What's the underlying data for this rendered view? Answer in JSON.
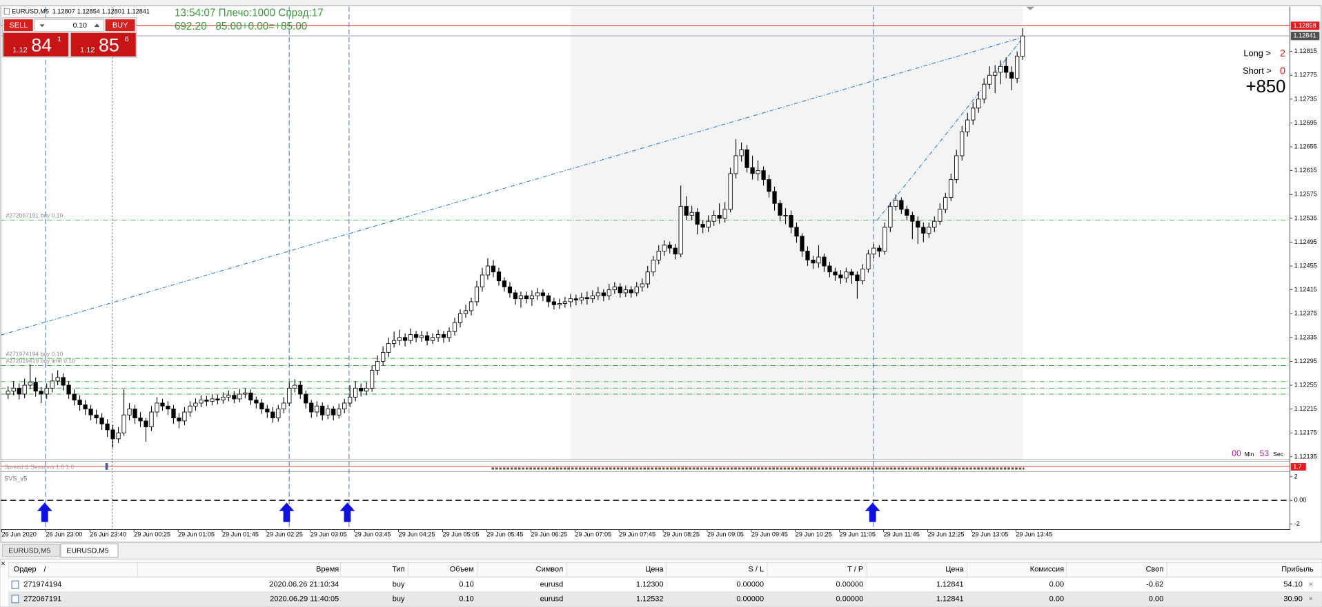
{
  "header": {
    "symbol": "EURUSD,M5",
    "ohlc": [
      1.12807,
      1.12854,
      1.12801,
      1.12841
    ]
  },
  "trade_panel": {
    "sell": "SELL",
    "buy": "BUY",
    "lot": "0.10",
    "sell_price": {
      "big": "1.12",
      "pips": "84",
      "frac": "1"
    },
    "buy_price": {
      "big": "1.12",
      "pips": "85",
      "frac": "8"
    }
  },
  "info": {
    "line1": "13:54:07 Плечо:1000 Спрэд:17",
    "line2": "692.20   85.00+0.00=+85.00"
  },
  "stats": {
    "long_label": "Long >",
    "long": "2",
    "short_label": "Short >",
    "short": "0",
    "total": "+850"
  },
  "timer": {
    "min": "00",
    "min_label": "Min",
    "sec": "53",
    "sec_label": "Sec"
  },
  "chart": {
    "type": "candlestick",
    "ylim": [
      1.1213,
      1.1289
    ],
    "yticks": [
      1.12815,
      1.12775,
      1.12735,
      1.12695,
      1.12655,
      1.12615,
      1.12575,
      1.12535,
      1.12495,
      1.12455,
      1.12415,
      1.12375,
      1.12335,
      1.12295,
      1.12255,
      1.12215,
      1.12175,
      1.12135
    ],
    "ask": 1.12858,
    "bid": 1.12841,
    "xticks": [
      "26 Jun 2020",
      "26 Jun 23:00",
      "26 Jun 23:40",
      "29 Jun 00:25",
      "29 Jun 01:05",
      "29 Jun 01:45",
      "29 Jun 02:25",
      "29 Jun 03:05",
      "29 Jun 03:45",
      "29 Jun 04:25",
      "29 Jun 05:05",
      "29 Jun 05:45",
      "29 Jun 06:25",
      "29 Jun 07:05",
      "29 Jun 07:45",
      "29 Jun 08:25",
      "29 Jun 09:05",
      "29 Jun 09:45",
      "29 Jun 10:25",
      "29 Jun 11:05",
      "29 Jun 11:45",
      "29 Jun 12:25",
      "29 Jun 13:05",
      "29 Jun 13:45"
    ],
    "order_lines": [
      {
        "price": 1.12532,
        "label": "#272067191 buy 0.10"
      },
      {
        "price": 1.123,
        "label": "#271974194 buy 0.10"
      },
      {
        "price": 1.12288,
        "label": "#272019419 buy limit 0.10"
      },
      {
        "price": 1.12261
      },
      {
        "price": 1.1225
      },
      {
        "price": 1.1224
      }
    ],
    "candles": [
      [
        1.1224,
        1.12253,
        1.12232,
        1.12245
      ],
      [
        1.12245,
        1.12262,
        1.12238,
        1.1225
      ],
      [
        1.1225,
        1.12258,
        1.12231,
        1.1224
      ],
      [
        1.1224,
        1.12266,
        1.12233,
        1.12255
      ],
      [
        1.12255,
        1.1229,
        1.12248,
        1.1226
      ],
      [
        1.1226,
        1.12268,
        1.12236,
        1.12245
      ],
      [
        1.12245,
        1.12252,
        1.12225,
        1.1224
      ],
      [
        1.1224,
        1.12258,
        1.12232,
        1.1225
      ],
      [
        1.1225,
        1.12275,
        1.12243,
        1.12262
      ],
      [
        1.12262,
        1.1228,
        1.12255,
        1.12268
      ],
      [
        1.12268,
        1.12275,
        1.12246,
        1.12255
      ],
      [
        1.12255,
        1.12262,
        1.12232,
        1.1224
      ],
      [
        1.1224,
        1.12248,
        1.12221,
        1.1223
      ],
      [
        1.1223,
        1.12238,
        1.12212,
        1.12222
      ],
      [
        1.12222,
        1.1223,
        1.12205,
        1.12215
      ],
      [
        1.12215,
        1.12222,
        1.12196,
        1.12205
      ],
      [
        1.12205,
        1.12214,
        1.1219,
        1.122
      ],
      [
        1.122,
        1.12208,
        1.1218,
        1.1219
      ],
      [
        1.1219,
        1.12198,
        1.12168,
        1.1218
      ],
      [
        1.1218,
        1.12188,
        1.1215,
        1.12165
      ],
      [
        1.12165,
        1.12185,
        1.12158,
        1.12175
      ],
      [
        1.12175,
        1.12248,
        1.1217,
        1.12205
      ],
      [
        1.12205,
        1.12225,
        1.12196,
        1.12215
      ],
      [
        1.12215,
        1.12222,
        1.1219,
        1.122
      ],
      [
        1.122,
        1.1221,
        1.12185,
        1.12195
      ],
      [
        1.12195,
        1.122,
        1.1216,
        1.12185
      ],
      [
        1.12185,
        1.1222,
        1.12178,
        1.1221
      ],
      [
        1.1221,
        1.12235,
        1.12202,
        1.12225
      ],
      [
        1.12225,
        1.12232,
        1.12212,
        1.1222
      ],
      [
        1.1222,
        1.12228,
        1.12205,
        1.12215
      ],
      [
        1.12215,
        1.12222,
        1.1219,
        1.122
      ],
      [
        1.122,
        1.12208,
        1.12183,
        1.12195
      ],
      [
        1.12195,
        1.12218,
        1.12188,
        1.1221
      ],
      [
        1.1221,
        1.12228,
        1.12202,
        1.1222
      ],
      [
        1.1222,
        1.12233,
        1.12212,
        1.12225
      ],
      [
        1.12225,
        1.12238,
        1.12218,
        1.1223
      ],
      [
        1.1223,
        1.12237,
        1.1222,
        1.12228
      ],
      [
        1.12228,
        1.1224,
        1.12221,
        1.12232
      ],
      [
        1.12232,
        1.12239,
        1.12223,
        1.1223
      ],
      [
        1.1223,
        1.12243,
        1.12224,
        1.12235
      ],
      [
        1.12235,
        1.12246,
        1.12228,
        1.12238
      ],
      [
        1.12238,
        1.12245,
        1.12225,
        1.12232
      ],
      [
        1.12232,
        1.12248,
        1.12226,
        1.1224
      ],
      [
        1.1224,
        1.1225,
        1.12233,
        1.12242
      ],
      [
        1.12242,
        1.12248,
        1.12222,
        1.1223
      ],
      [
        1.1223,
        1.12236,
        1.12216,
        1.12225
      ],
      [
        1.12225,
        1.12232,
        1.12207,
        1.12215
      ],
      [
        1.12215,
        1.12222,
        1.122,
        1.1221
      ],
      [
        1.1221,
        1.12218,
        1.12192,
        1.122
      ],
      [
        1.122,
        1.12222,
        1.12194,
        1.12215
      ],
      [
        1.12215,
        1.12235,
        1.12208,
        1.12225
      ],
      [
        1.12225,
        1.1226,
        1.1222,
        1.1225
      ],
      [
        1.1225,
        1.12265,
        1.12243,
        1.12255
      ],
      [
        1.12255,
        1.12262,
        1.12232,
        1.1224
      ],
      [
        1.1224,
        1.12246,
        1.12216,
        1.12225
      ],
      [
        1.12225,
        1.1223,
        1.122,
        1.1221
      ],
      [
        1.1221,
        1.12228,
        1.12202,
        1.1222
      ],
      [
        1.1222,
        1.12226,
        1.12196,
        1.12205
      ],
      [
        1.12205,
        1.12222,
        1.12198,
        1.12215
      ],
      [
        1.12215,
        1.1222,
        1.12196,
        1.12205
      ],
      [
        1.12205,
        1.12224,
        1.12199,
        1.12215
      ],
      [
        1.12215,
        1.12232,
        1.12208,
        1.12225
      ],
      [
        1.12225,
        1.12255,
        1.12218,
        1.12235
      ],
      [
        1.12235,
        1.12262,
        1.12228,
        1.1225
      ],
      [
        1.1225,
        1.12258,
        1.12236,
        1.12245
      ],
      [
        1.12245,
        1.1226,
        1.12238,
        1.1225
      ],
      [
        1.1225,
        1.12288,
        1.12244,
        1.1228
      ],
      [
        1.1228,
        1.12305,
        1.12272,
        1.12295
      ],
      [
        1.12295,
        1.1232,
        1.12288,
        1.1231
      ],
      [
        1.1231,
        1.12335,
        1.12302,
        1.12325
      ],
      [
        1.12325,
        1.12345,
        1.12318,
        1.1233
      ],
      [
        1.1233,
        1.12348,
        1.12322,
        1.12335
      ],
      [
        1.12335,
        1.12342,
        1.1232,
        1.1233
      ],
      [
        1.1233,
        1.1235,
        1.12324,
        1.1234
      ],
      [
        1.1234,
        1.12346,
        1.12327,
        1.12335
      ],
      [
        1.12335,
        1.12346,
        1.12328,
        1.12338
      ],
      [
        1.12338,
        1.12345,
        1.12322,
        1.1233
      ],
      [
        1.1233,
        1.12342,
        1.12324,
        1.12335
      ],
      [
        1.12335,
        1.12348,
        1.12328,
        1.1234
      ],
      [
        1.1234,
        1.12346,
        1.12326,
        1.12335
      ],
      [
        1.12335,
        1.12352,
        1.12328,
        1.12345
      ],
      [
        1.12345,
        1.12368,
        1.12338,
        1.1236
      ],
      [
        1.1236,
        1.12382,
        1.12352,
        1.12375
      ],
      [
        1.12375,
        1.1239,
        1.12368,
        1.1238
      ],
      [
        1.1238,
        1.12402,
        1.12372,
        1.12395
      ],
      [
        1.12395,
        1.1243,
        1.12388,
        1.1242
      ],
      [
        1.1242,
        1.12452,
        1.12412,
        1.1244
      ],
      [
        1.1244,
        1.12468,
        1.12432,
        1.12455
      ],
      [
        1.12455,
        1.12465,
        1.12436,
        1.12445
      ],
      [
        1.12445,
        1.12452,
        1.12422,
        1.1243
      ],
      [
        1.1243,
        1.12436,
        1.12412,
        1.1242
      ],
      [
        1.1242,
        1.12428,
        1.12402,
        1.1241
      ],
      [
        1.1241,
        1.12415,
        1.1239,
        1.124
      ],
      [
        1.124,
        1.12412,
        1.12385,
        1.12405
      ],
      [
        1.12405,
        1.12412,
        1.12392,
        1.124
      ],
      [
        1.124,
        1.12414,
        1.12388,
        1.12405
      ],
      [
        1.12405,
        1.12418,
        1.12398,
        1.1241
      ],
      [
        1.1241,
        1.12416,
        1.12396,
        1.12405
      ],
      [
        1.12405,
        1.1241,
        1.12386,
        1.12395
      ],
      [
        1.12395,
        1.12402,
        1.12382,
        1.1239
      ],
      [
        1.1239,
        1.124,
        1.12383,
        1.12392
      ],
      [
        1.12392,
        1.12403,
        1.12385,
        1.12395
      ],
      [
        1.12395,
        1.12408,
        1.12386,
        1.124
      ],
      [
        1.124,
        1.12407,
        1.12389,
        1.12398
      ],
      [
        1.12398,
        1.1241,
        1.12391,
        1.12402
      ],
      [
        1.12402,
        1.12412,
        1.1239,
        1.124
      ],
      [
        1.124,
        1.12414,
        1.12393,
        1.12405
      ],
      [
        1.12405,
        1.1242,
        1.12398,
        1.1241
      ],
      [
        1.1241,
        1.12416,
        1.12396,
        1.12405
      ],
      [
        1.12405,
        1.12425,
        1.12398,
        1.12415
      ],
      [
        1.12415,
        1.12428,
        1.12408,
        1.1242
      ],
      [
        1.1242,
        1.12426,
        1.12402,
        1.1241
      ],
      [
        1.1241,
        1.12422,
        1.12403,
        1.12415
      ],
      [
        1.12415,
        1.12421,
        1.12402,
        1.1241
      ],
      [
        1.1241,
        1.12428,
        1.12404,
        1.1242
      ],
      [
        1.1242,
        1.12434,
        1.12412,
        1.12425
      ],
      [
        1.12425,
        1.12455,
        1.12418,
        1.12445
      ],
      [
        1.12445,
        1.12472,
        1.12438,
        1.12465
      ],
      [
        1.12465,
        1.1249,
        1.12458,
        1.1248
      ],
      [
        1.1248,
        1.12498,
        1.12472,
        1.1249
      ],
      [
        1.1249,
        1.12496,
        1.12476,
        1.12485
      ],
      [
        1.12485,
        1.12492,
        1.12466,
        1.12475
      ],
      [
        1.12475,
        1.1259,
        1.1247,
        1.12555
      ],
      [
        1.12555,
        1.12572,
        1.12532,
        1.1254
      ],
      [
        1.1254,
        1.12556,
        1.12532,
        1.12545
      ],
      [
        1.12545,
        1.12552,
        1.12508,
        1.12525
      ],
      [
        1.12525,
        1.12532,
        1.1251,
        1.1252
      ],
      [
        1.1252,
        1.1254,
        1.12512,
        1.1253
      ],
      [
        1.1253,
        1.12548,
        1.12522,
        1.1254
      ],
      [
        1.1254,
        1.1256,
        1.12526,
        1.12535
      ],
      [
        1.12535,
        1.12562,
        1.12528,
        1.1255
      ],
      [
        1.1255,
        1.1262,
        1.12545,
        1.1261
      ],
      [
        1.1261,
        1.12668,
        1.12602,
        1.1264
      ],
      [
        1.1264,
        1.12662,
        1.1263,
        1.1265
      ],
      [
        1.1265,
        1.12658,
        1.12612,
        1.1262
      ],
      [
        1.1262,
        1.1264,
        1.126,
        1.1261
      ],
      [
        1.1261,
        1.12632,
        1.12598,
        1.12615
      ],
      [
        1.12615,
        1.12622,
        1.1259,
        1.126
      ],
      [
        1.126,
        1.12608,
        1.1257,
        1.1258
      ],
      [
        1.1258,
        1.12588,
        1.12548,
        1.1256
      ],
      [
        1.1256,
        1.12566,
        1.1253,
        1.1254
      ],
      [
        1.1254,
        1.12552,
        1.12525,
        1.1254
      ],
      [
        1.1254,
        1.12548,
        1.1251,
        1.1252
      ],
      [
        1.1252,
        1.12528,
        1.12494,
        1.12505
      ],
      [
        1.12505,
        1.1251,
        1.1247,
        1.1248
      ],
      [
        1.1248,
        1.12488,
        1.12455,
        1.12465
      ],
      [
        1.12465,
        1.12472,
        1.1245,
        1.1246
      ],
      [
        1.1246,
        1.1249,
        1.12452,
        1.1247
      ],
      [
        1.1247,
        1.12476,
        1.12445,
        1.12455
      ],
      [
        1.12455,
        1.12462,
        1.12436,
        1.12445
      ],
      [
        1.12445,
        1.12452,
        1.1243,
        1.1244
      ],
      [
        1.1244,
        1.12448,
        1.12425,
        1.12435
      ],
      [
        1.12435,
        1.12452,
        1.12427,
        1.12445
      ],
      [
        1.12445,
        1.1245,
        1.12425,
        1.1244
      ],
      [
        1.1244,
        1.12446,
        1.124,
        1.1243
      ],
      [
        1.1243,
        1.12458,
        1.12424,
        1.1245
      ],
      [
        1.1245,
        1.12482,
        1.12444,
        1.12475
      ],
      [
        1.12475,
        1.12492,
        1.12468,
        1.12485
      ],
      [
        1.12485,
        1.1249,
        1.1247,
        1.1248
      ],
      [
        1.1248,
        1.12528,
        1.12474,
        1.1252
      ],
      [
        1.1252,
        1.12562,
        1.12512,
        1.12555
      ],
      [
        1.12555,
        1.12575,
        1.12548,
        1.12565
      ],
      [
        1.12565,
        1.1257,
        1.12542,
        1.1255
      ],
      [
        1.1255,
        1.12556,
        1.12532,
        1.1254
      ],
      [
        1.1254,
        1.12546,
        1.125,
        1.1253
      ],
      [
        1.1253,
        1.12538,
        1.12492,
        1.1252
      ],
      [
        1.1252,
        1.12528,
        1.12495,
        1.1251
      ],
      [
        1.1251,
        1.12528,
        1.12502,
        1.1252
      ],
      [
        1.1252,
        1.12538,
        1.12512,
        1.1253
      ],
      [
        1.1253,
        1.1256,
        1.12524,
        1.1255
      ],
      [
        1.1255,
        1.12578,
        1.12544,
        1.1257
      ],
      [
        1.1257,
        1.1261,
        1.12564,
        1.126
      ],
      [
        1.126,
        1.1265,
        1.12594,
        1.1264
      ],
      [
        1.1264,
        1.1269,
        1.12632,
        1.1268
      ],
      [
        1.1268,
        1.12712,
        1.12672,
        1.127
      ],
      [
        1.127,
        1.1273,
        1.12692,
        1.1272
      ],
      [
        1.1272,
        1.12748,
        1.12712,
        1.12735
      ],
      [
        1.12735,
        1.1277,
        1.12728,
        1.1276
      ],
      [
        1.1276,
        1.1279,
        1.12752,
        1.12775
      ],
      [
        1.12775,
        1.12792,
        1.12745,
        1.1278
      ],
      [
        1.1278,
        1.128,
        1.1276,
        1.1279
      ],
      [
        1.1279,
        1.12805,
        1.1277,
        1.1278
      ],
      [
        1.1278,
        1.1279,
        1.1275,
        1.1277
      ],
      [
        1.1277,
        1.12815,
        1.12762,
        1.12807
      ],
      [
        1.12807,
        1.12854,
        1.12801,
        1.12841
      ]
    ]
  },
  "spread_window": {
    "title": "Spread & Sessions 1.8 1.6",
    "value": "1.7"
  },
  "svs_window": {
    "title": "SVS_v5",
    "ylim": [
      -2.4,
      2.3
    ],
    "yticks": [
      2,
      {
        "value": 0,
        "label": "0.00"
      },
      -2
    ]
  },
  "tabs": [
    "EURUSD,M5",
    "EURUSD,M5"
  ],
  "table": {
    "headers": [
      "Ордер",
      "/",
      "Время",
      "Тип",
      "Объем",
      "Символ",
      "Цена",
      "S / L",
      "T / P",
      "Цена",
      "Комиссия",
      "Своп",
      "Прибыль"
    ],
    "rows": [
      [
        "271974194",
        "2020.06.26 21:10:34",
        "buy",
        "0.10",
        "eurusd",
        "1.12300",
        "0.00000",
        "0.00000",
        "1.12841",
        "0.00",
        "-0.62",
        "54.10"
      ],
      [
        "272067191",
        "2020.06.29 11:40:05",
        "buy",
        "0.10",
        "eurusd",
        "1.12532",
        "0.00000",
        "0.00000",
        "1.12841",
        "0.00",
        "0.00",
        "30.90"
      ]
    ]
  }
}
